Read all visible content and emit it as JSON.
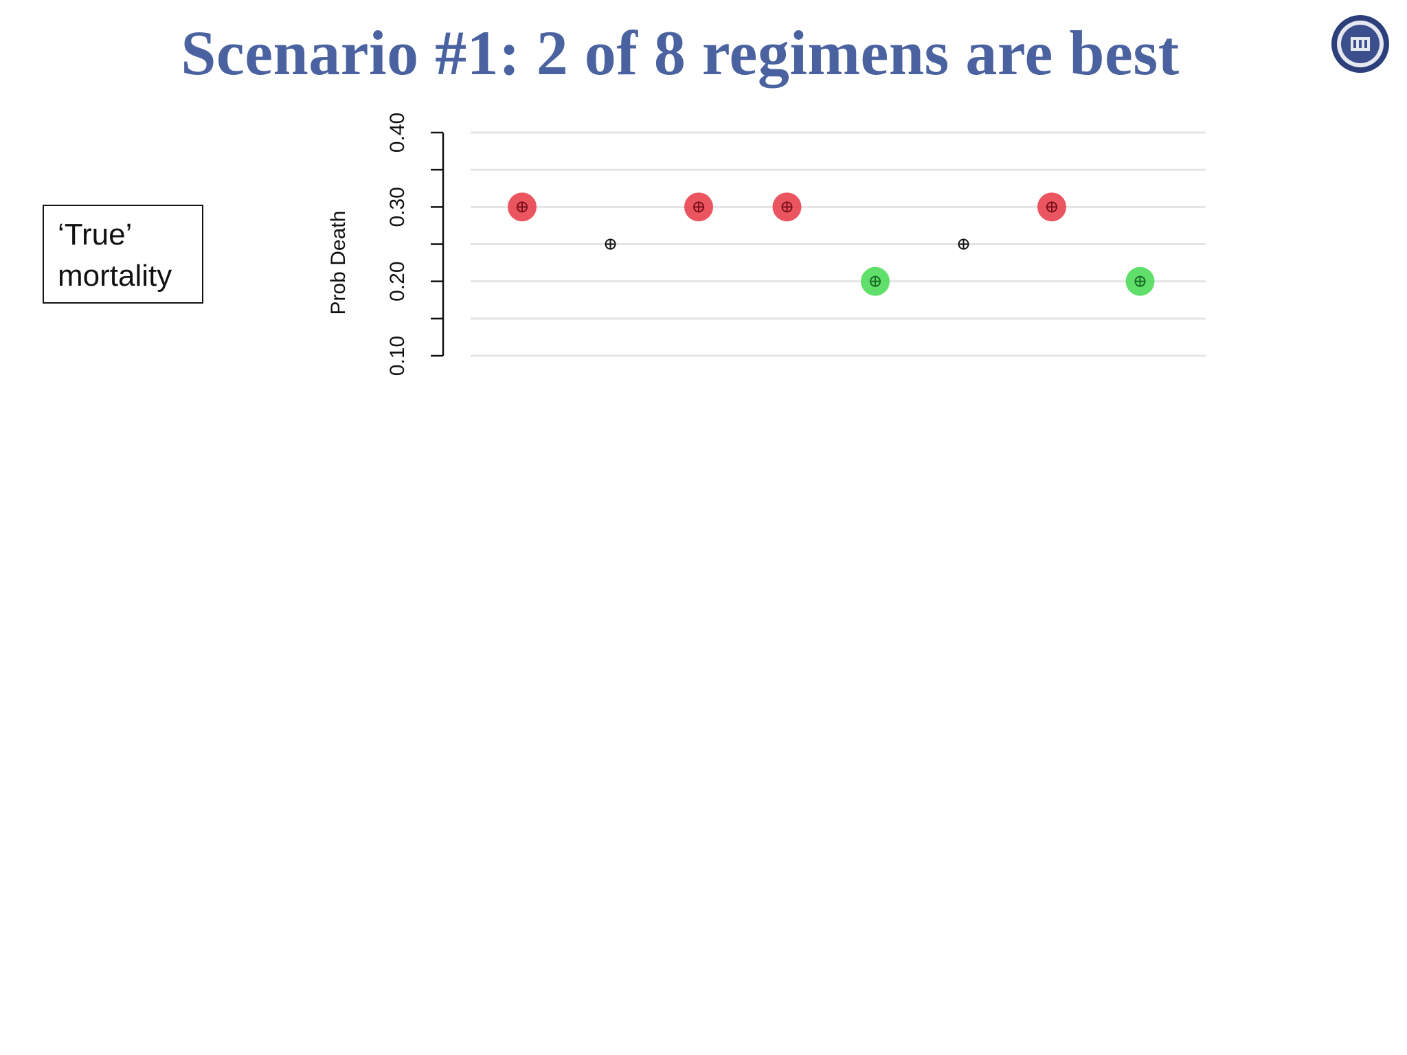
{
  "slide": {
    "title": "Scenario #1: 2 of 8 regimens are best",
    "legend_line1": "‘True’",
    "legend_line2": "mortality"
  },
  "colors": {
    "title": "#4a63a0",
    "high_point": "#e8424f",
    "low_point": "#4fdc5a",
    "mid_point": "#111111"
  },
  "chart_data": {
    "type": "scatter",
    "ylabel": "Prob Death",
    "xlabel": "",
    "ylim": [
      0.1,
      0.4
    ],
    "yticks": [
      0.1,
      0.15,
      0.2,
      0.25,
      0.3,
      0.35,
      0.4
    ],
    "ytick_labels": [
      "0.10",
      "0.20",
      "0.30",
      "0.40"
    ],
    "grid": true,
    "x": [
      1,
      2,
      3,
      4,
      5,
      6,
      7,
      8
    ],
    "values": [
      0.3,
      0.25,
      0.3,
      0.3,
      0.2,
      0.25,
      0.3,
      0.2
    ]
  }
}
